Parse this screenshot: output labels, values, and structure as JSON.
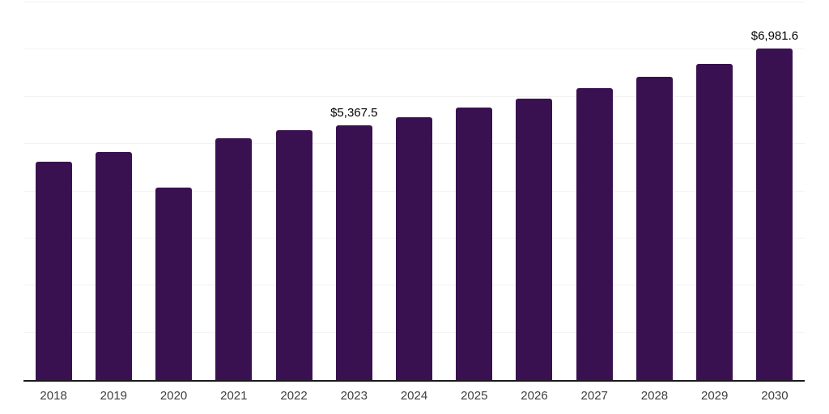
{
  "chart_data": {
    "type": "bar",
    "title": "",
    "xlabel": "",
    "ylabel": "",
    "categories": [
      "2018",
      "2019",
      "2020",
      "2021",
      "2022",
      "2023",
      "2024",
      "2025",
      "2026",
      "2027",
      "2028",
      "2029",
      "2030"
    ],
    "values": [
      4596,
      4795,
      4057,
      5090,
      5260,
      5367.5,
      5532,
      5731,
      5929,
      6140,
      6383,
      6651,
      6981.6
    ],
    "bar_labels": [
      "",
      "",
      "",
      "",
      "",
      "$5,367.5",
      "",
      "",
      "",
      "",
      "",
      "",
      "$6,981.6"
    ],
    "ylim": [
      0,
      7950
    ],
    "gridline_count": 8,
    "grid": "horizontal light-gray lines, no y-axis tick labels",
    "legend": "none",
    "colors": {
      "bar": "#3A1150",
      "axis_line": "#1a1a1a",
      "gridline": "#f2f2f2",
      "x_tick_label": "#3d3d3d",
      "data_label": "#000000",
      "background": "#ffffff"
    }
  }
}
